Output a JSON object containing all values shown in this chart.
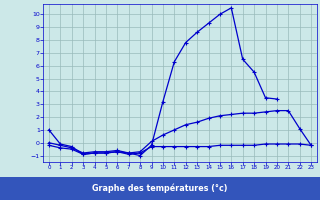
{
  "title": "Graphe des températures (°c)",
  "hours": [
    0,
    1,
    2,
    3,
    4,
    5,
    6,
    7,
    8,
    9,
    10,
    11,
    12,
    13,
    14,
    15,
    16,
    17,
    18,
    19,
    20,
    21,
    22,
    23
  ],
  "line1": [
    1.0,
    -0.1,
    -0.3,
    -0.9,
    -0.8,
    -0.8,
    -0.7,
    -0.8,
    -1.0,
    -0.2,
    3.2,
    6.3,
    7.8,
    8.6,
    9.3,
    10.0,
    10.5,
    6.5,
    5.5,
    3.5,
    3.4,
    null,
    null,
    null
  ],
  "line2": [
    0.0,
    -0.2,
    -0.4,
    -0.8,
    -0.7,
    -0.7,
    -0.6,
    -0.8,
    -0.7,
    0.1,
    0.6,
    1.0,
    1.4,
    1.6,
    1.9,
    2.1,
    2.2,
    2.3,
    2.3,
    2.4,
    2.5,
    2.5,
    1.1,
    -0.2
  ],
  "line3": [
    -0.2,
    -0.4,
    -0.5,
    -0.9,
    -0.8,
    -0.8,
    -0.7,
    -0.9,
    -0.8,
    -0.3,
    -0.3,
    -0.3,
    -0.3,
    -0.3,
    -0.3,
    -0.2,
    -0.2,
    -0.2,
    -0.2,
    -0.1,
    -0.1,
    -0.1,
    -0.1,
    -0.2
  ],
  "line_color": "#0000cc",
  "bg_color": "#cce8e8",
  "grid_color": "#99bbbb",
  "bar_color": "#3355bb",
  "label_fg": "#ffffff",
  "tick_color": "#0000cc",
  "ylim": [
    -1.5,
    10.8
  ],
  "xlim": [
    -0.5,
    23.5
  ],
  "yticks": [
    -1,
    0,
    1,
    2,
    3,
    4,
    5,
    6,
    7,
    8,
    9,
    10
  ],
  "xticks": [
    0,
    1,
    2,
    3,
    4,
    5,
    6,
    7,
    8,
    9,
    10,
    11,
    12,
    13,
    14,
    15,
    16,
    17,
    18,
    19,
    20,
    21,
    22,
    23
  ]
}
